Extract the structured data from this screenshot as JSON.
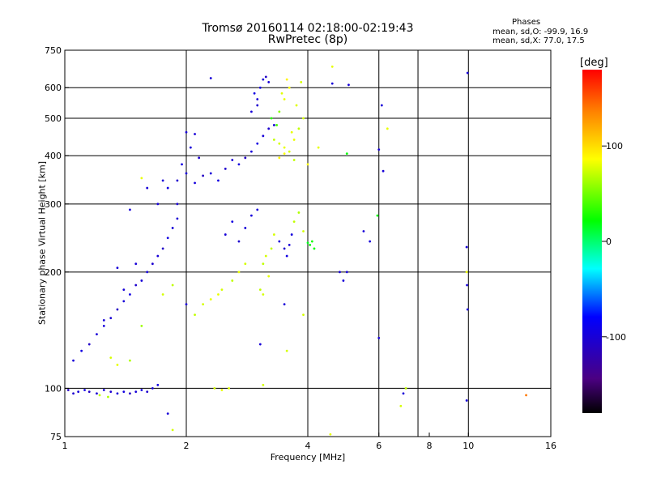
{
  "chart_data": {
    "type": "scatter",
    "title": "Tromsø 20160114 02:18:00-02:19:43",
    "subtitle": "RwPretec (8p)",
    "xlabel": "Frequency [MHz]",
    "ylabel": "Stationary phase Virtual Height [km]",
    "x_scale": "log",
    "y_scale": "log",
    "xlim": [
      1,
      16
    ],
    "ylim": [
      75,
      750
    ],
    "x_ticks": [
      1,
      2,
      4,
      6,
      8,
      10,
      16
    ],
    "x_tick_labels": [
      "1",
      "2",
      "4",
      "6",
      "8",
      "10",
      "16"
    ],
    "x_grid": [
      2,
      4,
      6,
      7.5,
      10
    ],
    "y_ticks": [
      75,
      100,
      200,
      300,
      400,
      500,
      600,
      750
    ],
    "y_tick_labels": [
      "75",
      "100",
      "200",
      "300",
      "400",
      "500",
      "600",
      "750"
    ],
    "y_grid": [
      100,
      200,
      300,
      400,
      500,
      600
    ],
    "grid": true,
    "colorbar": {
      "label": "[deg]",
      "ticks": [
        100,
        0,
        -100
      ],
      "tick_labels": [
        "100",
        "0",
        "-100"
      ],
      "range": [
        -180,
        180
      ]
    },
    "phase_stats": {
      "title": "Phases",
      "line_o": "mean, sd,O: -99.9, 16.9",
      "line_x": "mean, sd,X:  77.0, 17.5"
    },
    "series": [
      {
        "points": [
          [
            1.02,
            99,
            -110
          ],
          [
            1.05,
            97,
            -105
          ],
          [
            1.08,
            98,
            -100
          ],
          [
            1.12,
            99,
            -95
          ],
          [
            1.15,
            98,
            -108
          ],
          [
            1.2,
            97,
            -102
          ],
          [
            1.25,
            99,
            -98
          ],
          [
            1.3,
            98,
            -104
          ],
          [
            1.35,
            97,
            -100
          ],
          [
            1.4,
            98,
            -96
          ],
          [
            1.45,
            97,
            -112
          ],
          [
            1.5,
            98,
            -100
          ],
          [
            1.55,
            99,
            -95
          ],
          [
            1.6,
            98,
            -105
          ],
          [
            1.22,
            96,
            70
          ],
          [
            1.28,
            95,
            65
          ],
          [
            1.65,
            100,
            -100
          ],
          [
            1.7,
            102,
            -95
          ],
          [
            1.05,
            118,
            -100
          ],
          [
            1.1,
            125,
            -95
          ],
          [
            1.15,
            130,
            -108
          ],
          [
            1.2,
            138,
            -100
          ],
          [
            1.25,
            145,
            -98
          ],
          [
            1.3,
            152,
            -102
          ],
          [
            1.35,
            160,
            -110
          ],
          [
            1.4,
            168,
            -100
          ],
          [
            1.45,
            175,
            -95
          ],
          [
            1.5,
            185,
            -105
          ],
          [
            1.55,
            190,
            -100
          ],
          [
            1.6,
            200,
            -98
          ],
          [
            1.65,
            210,
            -104
          ],
          [
            1.7,
            220,
            -100
          ],
          [
            1.75,
            230,
            -108
          ],
          [
            1.8,
            245,
            -95
          ],
          [
            1.85,
            260,
            -100
          ],
          [
            1.9,
            275,
            -102
          ],
          [
            1.3,
            120,
            75
          ],
          [
            1.35,
            115,
            80
          ],
          [
            1.45,
            118,
            65
          ],
          [
            1.55,
            145,
            60
          ],
          [
            1.75,
            175,
            75
          ],
          [
            1.85,
            185,
            70
          ],
          [
            1.7,
            300,
            -100
          ],
          [
            1.8,
            330,
            -95
          ],
          [
            1.9,
            345,
            -105
          ],
          [
            2.0,
            360,
            -100
          ],
          [
            2.1,
            340,
            -98
          ],
          [
            2.2,
            355,
            -110
          ],
          [
            1.75,
            345,
            -100
          ],
          [
            1.95,
            380,
            -95
          ],
          [
            2.05,
            420,
            -100
          ],
          [
            1.9,
            300,
            -102
          ],
          [
            2.15,
            395,
            -105
          ],
          [
            2.3,
            360,
            -100
          ],
          [
            2.4,
            345,
            -95
          ],
          [
            2.5,
            370,
            -105
          ],
          [
            2.6,
            390,
            -100
          ],
          [
            2.7,
            380,
            -98
          ],
          [
            2.8,
            395,
            -110
          ],
          [
            2.9,
            410,
            -100
          ],
          [
            3.0,
            430,
            -95
          ],
          [
            3.1,
            450,
            -100
          ],
          [
            3.2,
            470,
            -105
          ],
          [
            3.3,
            480,
            -100
          ],
          [
            2.9,
            520,
            -100
          ],
          [
            3.0,
            560,
            -102
          ],
          [
            3.05,
            600,
            -95
          ],
          [
            3.1,
            630,
            -100
          ],
          [
            3.15,
            640,
            -108
          ],
          [
            3.2,
            620,
            -100
          ],
          [
            2.95,
            580,
            -95
          ],
          [
            3.0,
            540,
            -105
          ],
          [
            3.25,
            500,
            30
          ],
          [
            3.35,
            480,
            40
          ],
          [
            3.4,
            520,
            55
          ],
          [
            3.3,
            440,
            70
          ],
          [
            3.4,
            430,
            75
          ],
          [
            3.5,
            420,
            80
          ],
          [
            3.6,
            410,
            75
          ],
          [
            3.7,
            440,
            80
          ],
          [
            3.8,
            470,
            70
          ],
          [
            3.9,
            500,
            75
          ],
          [
            3.5,
            560,
            80
          ],
          [
            3.6,
            600,
            85
          ],
          [
            3.55,
            630,
            90
          ],
          [
            3.45,
            580,
            78
          ],
          [
            3.7,
            390,
            70
          ],
          [
            3.4,
            395,
            90
          ],
          [
            3.5,
            405,
            85
          ],
          [
            3.65,
            460,
            80
          ],
          [
            3.75,
            540,
            78
          ],
          [
            3.85,
            620,
            75
          ],
          [
            4.0,
            380,
            85
          ],
          [
            2.5,
            250,
            -100
          ],
          [
            2.6,
            270,
            -95
          ],
          [
            2.7,
            240,
            -105
          ],
          [
            2.8,
            260,
            -100
          ],
          [
            2.9,
            280,
            -98
          ],
          [
            3.0,
            290,
            -100
          ],
          [
            2.7,
            200,
            80
          ],
          [
            2.8,
            210,
            75
          ],
          [
            3.1,
            210,
            70
          ],
          [
            3.15,
            220,
            75
          ],
          [
            3.2,
            195,
            80
          ],
          [
            3.25,
            230,
            70
          ],
          [
            3.3,
            250,
            75
          ],
          [
            3.05,
            180,
            70
          ],
          [
            3.1,
            175,
            75
          ],
          [
            3.4,
            240,
            -100
          ],
          [
            3.5,
            230,
            -105
          ],
          [
            3.55,
            220,
            -95
          ],
          [
            3.6,
            235,
            -100
          ],
          [
            3.65,
            250,
            -98
          ],
          [
            3.7,
            270,
            70
          ],
          [
            3.8,
            285,
            65
          ],
          [
            3.9,
            255,
            75
          ],
          [
            4.05,
            235,
            20
          ],
          [
            4.1,
            240,
            25
          ],
          [
            4.15,
            230,
            20
          ],
          [
            4.0,
            238,
            15
          ],
          [
            2.4,
            175,
            80
          ],
          [
            2.45,
            180,
            75
          ],
          [
            2.6,
            190,
            70
          ],
          [
            2.35,
            100,
            75
          ],
          [
            2.45,
            99,
            80
          ],
          [
            2.55,
            100,
            78
          ],
          [
            2.2,
            165,
            75
          ],
          [
            2.3,
            170,
            80
          ],
          [
            2.1,
            155,
            70
          ],
          [
            2.0,
            165,
            -100
          ],
          [
            3.05,
            130,
            -100
          ],
          [
            3.1,
            102,
            75
          ],
          [
            3.5,
            165,
            -100
          ],
          [
            3.55,
            125,
            75
          ],
          [
            3.9,
            155,
            75
          ],
          [
            4.6,
            680,
            80
          ],
          [
            4.6,
            615,
            -100
          ],
          [
            5.05,
            610,
            -100
          ],
          [
            5.0,
            405,
            20
          ],
          [
            4.25,
            420,
            80
          ],
          [
            6.1,
            540,
            -100
          ],
          [
            6.0,
            415,
            -100
          ],
          [
            6.15,
            365,
            -100
          ],
          [
            6.3,
            470,
            80
          ],
          [
            5.95,
            280,
            20
          ],
          [
            6.0,
            135,
            -100
          ],
          [
            5.7,
            240,
            -100
          ],
          [
            5.5,
            255,
            -100
          ],
          [
            5.0,
            200,
            -100
          ],
          [
            4.8,
            200,
            -100
          ],
          [
            4.9,
            190,
            -100
          ],
          [
            6.9,
            97,
            -100
          ],
          [
            7.0,
            100,
            70
          ],
          [
            6.8,
            90,
            75
          ],
          [
            9.95,
            655,
            -100
          ],
          [
            9.9,
            232,
            -100
          ],
          [
            9.9,
            200,
            80
          ],
          [
            9.92,
            185,
            -100
          ],
          [
            9.95,
            160,
            -100
          ],
          [
            9.9,
            93,
            -100
          ],
          [
            13.9,
            96,
            140
          ],
          [
            4.55,
            76,
            80
          ],
          [
            1.8,
            86,
            -100
          ],
          [
            1.85,
            78,
            75
          ],
          [
            2.3,
            635,
            -100
          ],
          [
            2.1,
            455,
            -100
          ],
          [
            2.0,
            460,
            -100
          ],
          [
            1.55,
            350,
            80
          ],
          [
            1.6,
            330,
            -100
          ],
          [
            1.45,
            290,
            -100
          ],
          [
            1.35,
            205,
            -100
          ],
          [
            1.4,
            180,
            -100
          ],
          [
            1.25,
            150,
            -100
          ],
          [
            1.5,
            210,
            -100
          ]
        ]
      }
    ]
  }
}
